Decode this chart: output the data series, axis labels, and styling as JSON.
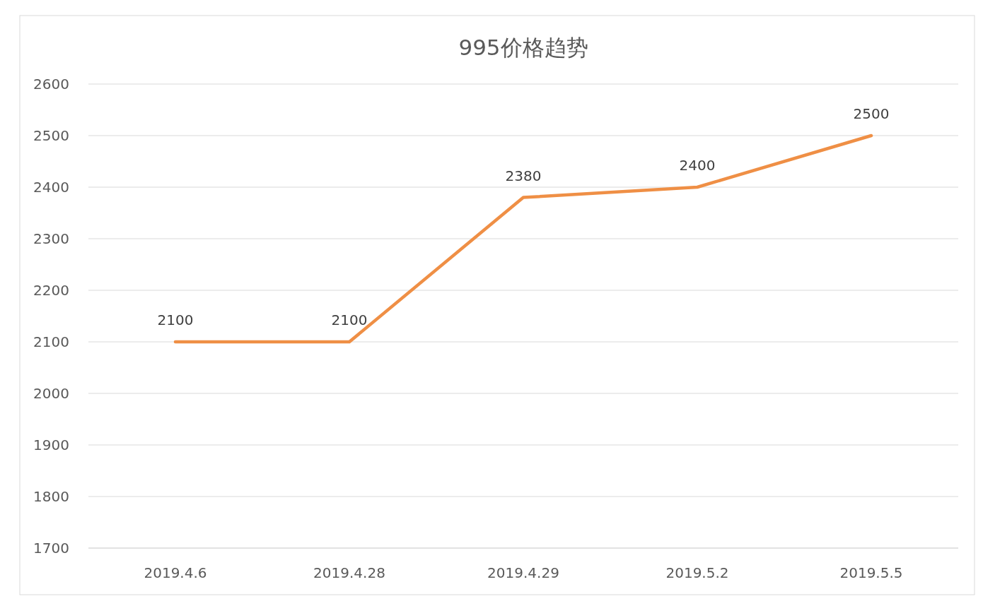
{
  "chart_data": {
    "type": "line",
    "title": "995价格趋势",
    "categories": [
      "2019.4.6",
      "2019.4.28",
      "2019.4.29",
      "2019.5.2",
      "2019.5.5"
    ],
    "series": [
      {
        "color": "#ef8f45",
        "values": [
          2100,
          2100,
          2380,
          2400,
          2500
        ]
      }
    ],
    "ylim": [
      1700,
      2600
    ],
    "yticks": [
      1700,
      1800,
      1900,
      2000,
      2100,
      2200,
      2300,
      2400,
      2500,
      2600
    ],
    "grid": "y",
    "data_labels": true,
    "marker": "none",
    "line_style": "solid"
  }
}
